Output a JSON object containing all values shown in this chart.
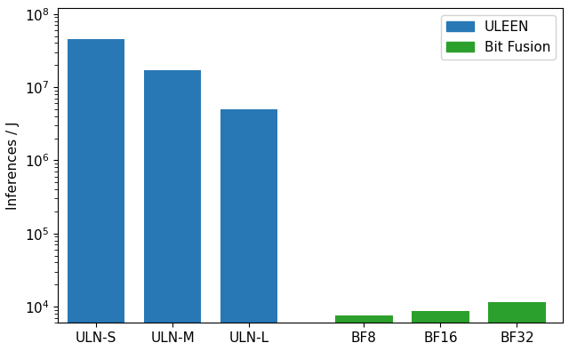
{
  "categories": [
    "ULN-S",
    "ULN-M",
    "ULN-L",
    "BF8",
    "BF16",
    "BF32"
  ],
  "values": [
    45000000.0,
    17000000.0,
    5000000.0,
    7500,
    8800,
    11500
  ],
  "colors": [
    "#2878b5",
    "#2878b5",
    "#2878b5",
    "#2ca02c",
    "#2ca02c",
    "#2ca02c"
  ],
  "ylabel": "Inferences / J",
  "ylim_bottom": 6000,
  "ylim_top": 120000000.0,
  "legend_labels": [
    "ULEEN",
    "Bit Fusion"
  ],
  "legend_colors": [
    "#2878b5",
    "#2ca02c"
  ],
  "bar_width": 0.75,
  "positions": [
    0,
    1,
    2,
    3.5,
    4.5,
    5.5
  ],
  "xlim_left": -0.5,
  "xlim_right": 6.1,
  "figsize": [
    6.4,
    3.95
  ],
  "dpi": 100
}
